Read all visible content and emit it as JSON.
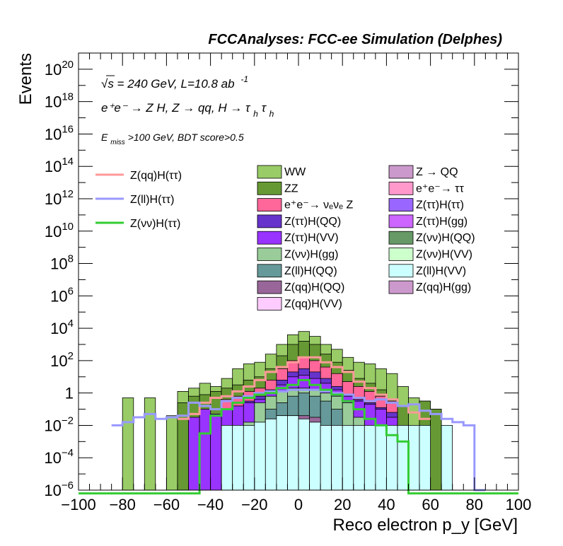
{
  "chart_data": {
    "type": "histogram",
    "title": "FCCAnalyses: FCC-ee Simulation (Delphes)",
    "xlabel": "Reco electron p_y [GeV]",
    "ylabel": "Events",
    "xlim": [
      -100,
      100
    ],
    "ylim_log10": [
      -6,
      21
    ],
    "yscale": "log",
    "x_ticks": [
      -100,
      -80,
      -60,
      -40,
      -20,
      0,
      20,
      40,
      60,
      80,
      100
    ],
    "x_tick_labels": [
      "−100",
      "−80",
      "−60",
      "−40",
      "−20",
      "0",
      "20",
      "40",
      "60",
      "80",
      "100"
    ],
    "y_tick_labels": [
      {
        "exp": -6,
        "text": "10",
        "sup": "−6"
      },
      {
        "exp": -4,
        "text": "10",
        "sup": "−4"
      },
      {
        "exp": -2,
        "text": "10",
        "sup": "−2"
      },
      {
        "exp": 0,
        "text": "1",
        "sup": ""
      },
      {
        "exp": 2,
        "text": "10",
        "sup": "2"
      },
      {
        "exp": 4,
        "text": "10",
        "sup": "4"
      },
      {
        "exp": 6,
        "text": "10",
        "sup": "6"
      },
      {
        "exp": 8,
        "text": "10",
        "sup": "8"
      },
      {
        "exp": 10,
        "text": "10",
        "sup": "10"
      },
      {
        "exp": 12,
        "text": "10",
        "sup": "12"
      },
      {
        "exp": 14,
        "text": "10",
        "sup": "14"
      },
      {
        "exp": 16,
        "text": "10",
        "sup": "16"
      },
      {
        "exp": 18,
        "text": "10",
        "sup": "18"
      },
      {
        "exp": 20,
        "text": "10",
        "sup": "20"
      }
    ],
    "bin_width": 5,
    "bin_centers": [
      -77.5,
      -72.5,
      -67.5,
      -62.5,
      -57.5,
      -52.5,
      -47.5,
      -42.5,
      -37.5,
      -32.5,
      -27.5,
      -22.5,
      -17.5,
      -12.5,
      -7.5,
      -2.5,
      2.5,
      7.5,
      12.5,
      17.5,
      22.5,
      27.5,
      32.5,
      37.5,
      42.5,
      47.5,
      52.5,
      57.5,
      62.5,
      67.5,
      72.5,
      77.5
    ],
    "stack_total_log10": [
      -0.3,
      -6,
      -0.3,
      -6,
      -1.4,
      0.1,
      0.3,
      0.6,
      0.4,
      0.9,
      1.5,
      1.8,
      1.9,
      2.4,
      3.0,
      3.6,
      3.8,
      3.5,
      3.0,
      2.7,
      2.2,
      1.9,
      1.8,
      1.5,
      1.2,
      0.4,
      -0.3,
      -0.5,
      -1.0,
      -6,
      -6,
      -6
    ],
    "layers": [
      {
        "name": "WW",
        "color": "#99cc66",
        "log10": [
          -0.3,
          -6,
          -0.3,
          -6,
          -1.4,
          0.1,
          0.3,
          0.6,
          0.4,
          0.9,
          1.5,
          1.8,
          1.9,
          2.4,
          3.0,
          3.6,
          3.8,
          3.5,
          3.0,
          2.7,
          2.2,
          1.9,
          1.8,
          1.5,
          1.2,
          0.4,
          -0.3,
          -0.5,
          -1.0,
          -6,
          -6,
          -6
        ]
      },
      {
        "name": "ZZ",
        "color": "#669933",
        "log10": [
          -6,
          -6,
          -6,
          -6,
          -6,
          -0.6,
          -0.2,
          -0.1,
          0.1,
          0.3,
          0.5,
          0.8,
          1.0,
          1.5,
          2.3,
          3.0,
          3.2,
          3.0,
          2.4,
          1.9,
          1.4,
          0.9,
          0.6,
          0.2,
          -0.4,
          -0.8,
          -6,
          -0.5,
          -1.0,
          -6,
          -6,
          -6
        ]
      },
      {
        "name": "e⁺e⁻→ νₑνₑ Z",
        "color": "#ff6699",
        "log10": [
          -6,
          -6,
          -6,
          -6,
          -6,
          -6,
          -6,
          -6,
          -6,
          -0.4,
          -0.2,
          0.1,
          0.3,
          0.8,
          1.5,
          2.0,
          2.2,
          2.0,
          1.6,
          1.2,
          0.7,
          0.4,
          0.1,
          -0.2,
          -0.5,
          -6,
          -6,
          -6,
          -6,
          -6,
          -6,
          -6
        ]
      },
      {
        "name": "Z(ττ)H(QQ)",
        "color": "#6633cc",
        "log10": [
          -6,
          -6,
          -6,
          -6,
          -6,
          -6,
          -6,
          -6,
          -6,
          -1.2,
          -0.8,
          -0.5,
          -0.2,
          0.2,
          0.8,
          1.3,
          1.5,
          1.3,
          0.9,
          0.4,
          -0.1,
          -0.4,
          -0.6,
          -0.9,
          -1.2,
          -6,
          -6,
          -6,
          -6,
          -6,
          -6,
          -6
        ]
      },
      {
        "name": "Z(ττ)H(VV)",
        "color": "#9933ff",
        "log10": [
          -6,
          -6,
          -6,
          -6,
          -6,
          -6,
          -1.5,
          -1.0,
          -1.3,
          -1.0,
          -0.8,
          -0.6,
          -0.4,
          0.0,
          0.5,
          1.0,
          1.1,
          0.9,
          0.6,
          0.2,
          -0.2,
          -0.5,
          -0.7,
          -1.0,
          -1.5,
          -6,
          -6,
          -6,
          -6,
          -6,
          -6,
          -6
        ]
      },
      {
        "name": "Z(νν)H(gg)",
        "color": "#99cc99",
        "log10": [
          -6,
          -6,
          -6,
          -6,
          -6,
          -6,
          -6,
          -6,
          -6,
          -6,
          -6,
          -1.8,
          -0.6,
          -0.2,
          0.1,
          0.3,
          0.3,
          0.2,
          0.0,
          -0.2,
          -0.6,
          -1.5,
          -6,
          -6,
          -6,
          -6,
          -6,
          -6,
          -6,
          -6,
          -6,
          -6
        ]
      },
      {
        "name": "Z(ll)H(QQ)",
        "color": "#669999",
        "log10": [
          -6,
          -6,
          -6,
          -6,
          -6,
          -6,
          -6,
          -6,
          -6,
          -6,
          -6,
          -6,
          -6,
          -1.0,
          -0.6,
          -0.2,
          0.0,
          -0.2,
          -0.5,
          -1.0,
          -6,
          -6,
          -6,
          -6,
          -6,
          -6,
          -6,
          -6,
          -6,
          -6,
          -6,
          -6
        ]
      },
      {
        "name": "Z(qq)H(QQ)",
        "color": "#996699",
        "log10": [
          -6,
          -6,
          -6,
          -6,
          -6,
          -6,
          -6,
          -6,
          -6,
          -6,
          -6,
          -6,
          -2.0,
          -1.6,
          -1.4,
          -1.4,
          -1.4,
          -1.5,
          -2.0,
          -6,
          -6,
          -6,
          -6,
          -6,
          -6,
          -6,
          -6,
          -6,
          -6,
          -6,
          -6,
          -6
        ]
      },
      {
        "name": "Z(qq)H(VV)",
        "color": "#ffccff",
        "log10": [
          -6,
          -6,
          -6,
          -6,
          -6,
          -6,
          -6,
          -6,
          -6,
          -6,
          -6,
          -6,
          -6,
          -2.2,
          -2.0,
          -2.0,
          -2.0,
          -2.2,
          -6,
          -6,
          -6,
          -6,
          -6,
          -6,
          -6,
          -6,
          -6,
          -6,
          -6,
          -6,
          -6,
          -6
        ]
      },
      {
        "name": "Z → QQ",
        "color": "#cc99cc",
        "log10": [
          -6,
          -6,
          -6,
          -6,
          -6,
          -6,
          -6,
          -6,
          -6,
          -6,
          -6,
          -6,
          -6,
          -6,
          -6,
          -6,
          -6,
          -6,
          -6,
          -6,
          -6,
          -6,
          -6,
          -6,
          -6,
          -6,
          -6,
          -6,
          -6,
          -6,
          -6,
          -6
        ]
      },
      {
        "name": "e⁺e⁻→ ττ",
        "color": "#ff99cc",
        "log10": [
          -6,
          -6,
          -6,
          -6,
          -6,
          -6,
          -6,
          -6,
          -6,
          -6,
          -6,
          -6,
          -6,
          -6,
          -6,
          -6,
          -6,
          -6,
          -6,
          -6,
          -6,
          -6,
          -6,
          -6,
          -6,
          -6,
          -6,
          -6,
          -6,
          -6,
          -6,
          -6
        ]
      },
      {
        "name": "Z(ττ)H(ττ)",
        "color": "#9966ff",
        "log10": [
          -6,
          -6,
          -6,
          -6,
          -6,
          -6,
          -6,
          -6,
          -6,
          -6,
          -6,
          -6,
          -6,
          -6,
          -6,
          -6,
          -6,
          -6,
          -6,
          -6,
          -6,
          -6,
          -6,
          -6,
          -6,
          -6,
          -6,
          -6,
          -6,
          -6,
          -6,
          -6
        ]
      },
      {
        "name": "Z(ττ)H(gg)",
        "color": "#cc66ff",
        "log10": [
          -6,
          -6,
          -6,
          -6,
          -6,
          -6,
          -6,
          -6,
          -6,
          -6,
          -6,
          -6,
          -6,
          -6,
          -6,
          -6,
          -6,
          -6,
          -6,
          -6,
          -6,
          -6,
          -6,
          -6,
          -6,
          -6,
          -6,
          -6,
          -6,
          -6,
          -6,
          -6
        ]
      },
      {
        "name": "Z(νν)H(QQ)",
        "color": "#669966",
        "log10": [
          -6,
          -6,
          -6,
          -6,
          -6,
          -6,
          -6,
          -6,
          -6,
          -6,
          -6,
          -6,
          -6,
          -6,
          -6,
          -6,
          -6,
          -6,
          -6,
          -6,
          -6,
          -6,
          -6,
          -6,
          -6,
          -6,
          -6,
          -6,
          -6,
          -6,
          -6,
          -6
        ]
      },
      {
        "name": "Z(νν)H(VV)",
        "color": "#ccffcc",
        "log10": [
          -6,
          -6,
          -6,
          -6,
          -6,
          -6,
          -6,
          -6,
          -6,
          -6,
          -6,
          -6,
          -6,
          -6,
          -6,
          -6,
          -6,
          -6,
          -6,
          -6,
          -6,
          -6,
          -6,
          -6,
          -6,
          -6,
          -6,
          -6,
          -6,
          -6,
          -6,
          -6
        ]
      },
      {
        "name": "Z(ll)H(VV)",
        "color": "#ccffff",
        "log10": [
          -6,
          -6,
          -6,
          -6,
          -6,
          -6,
          -6,
          -6,
          -6,
          -2.0,
          -2.0,
          -2.0,
          -1.8,
          -1.6,
          -1.4,
          -1.4,
          -1.6,
          -1.8,
          -2.0,
          -2.0,
          -2.0,
          -2.0,
          -2.0,
          -2.0,
          -2.0,
          -2.0,
          -2.0,
          -2.0,
          -6,
          -2.0,
          -6,
          -6
        ]
      },
      {
        "name": "Z(qq)H(gg)",
        "color": "#cc99cc",
        "log10": [
          -6,
          -6,
          -6,
          -6,
          -6,
          -6,
          -6,
          -6,
          -6,
          -6,
          -6,
          -6,
          -6,
          -6,
          -6,
          -6,
          -6,
          -6,
          -6,
          -6,
          -6,
          -6,
          -6,
          -6,
          -6,
          -6,
          -6,
          -6,
          -6,
          -6,
          -6,
          -6
        ]
      }
    ],
    "signals": [
      {
        "name": "Z(qq)H(ττ)",
        "color": "#ff9999",
        "x_edges": [
          -55,
          -50,
          -45,
          -40,
          -35,
          -30,
          -25,
          -20,
          -15,
          -10,
          -5,
          0,
          5,
          10,
          15,
          20,
          25,
          30,
          35,
          40,
          45,
          50,
          55,
          60
        ],
        "log10": [
          -1.6,
          -1.3,
          -0.6,
          -0.3,
          -0.2,
          0.1,
          0.4,
          0.8,
          1.3,
          1.6,
          1.9,
          2.2,
          2.2,
          1.9,
          1.6,
          1.3,
          0.7,
          0.3,
          -0.1,
          -0.4,
          -0.8,
          -1.2,
          -1.6
        ]
      },
      {
        "name": "Z(ll)H(ττ)",
        "color": "#9999ff",
        "x_edges": [
          -85,
          -80,
          -75,
          -70,
          -65,
          -60,
          -55,
          -50,
          -45,
          -40,
          -35,
          -30,
          -25,
          -20,
          -15,
          -10,
          -5,
          0,
          5,
          10,
          15,
          20,
          25,
          30,
          35,
          40,
          45,
          50,
          55,
          60,
          65,
          70,
          75,
          80,
          85
        ],
        "log10": [
          -2.0,
          -1.8,
          -1.5,
          -1.3,
          -1.6,
          -1.5,
          -1.4,
          -0.6,
          -0.8,
          -1.0,
          -0.5,
          -0.3,
          -0.2,
          0.0,
          0.1,
          0.1,
          0.2,
          0.2,
          0.2,
          0.1,
          0.0,
          -0.1,
          -0.3,
          -0.5,
          -0.4,
          -0.6,
          -0.8,
          -0.7,
          -1.1,
          -1.3,
          -1.6,
          -1.8,
          -2.0,
          -6
        ]
      },
      {
        "name": "Z(νν)H(ττ)",
        "color": "#33cc33",
        "x_edges": [
          -100,
          -45,
          -40,
          -35,
          -30,
          -25,
          -20,
          -15,
          -10,
          -5,
          0,
          5,
          10,
          15,
          20,
          25,
          30,
          35,
          40,
          45,
          50,
          55,
          100
        ],
        "log10": [
          -6.3,
          -2.5,
          -1.4,
          -1.0,
          -0.6,
          -0.3,
          -0.1,
          0.0,
          0.3,
          0.5,
          0.8,
          0.5,
          0.2,
          -0.1,
          -0.5,
          -1.0,
          -1.6,
          -2.0,
          -2.6,
          -3.0,
          -6.3,
          -6.3
        ]
      }
    ]
  },
  "annotations": {
    "energy": "√s = 240 GeV, L=10.8 ab",
    "lumi_exp": "-1",
    "process": "e⁺e⁻ → Z H, Z  → qq, H  → τ",
    "process_sub1": "h",
    "process_tau2": "τ",
    "process_sub2": "h",
    "selection_pre": "E",
    "selection_sub": "miss",
    "selection_post": ">100 GeV, BDT score>0.5"
  },
  "legend_signals": [
    "Z(qq)H(ττ)",
    "Z(ll)H(ττ)",
    "Z(νν)H(ττ)"
  ],
  "legend_backgrounds_col1": [
    {
      "label": "WW",
      "color": "#99cc66"
    },
    {
      "label": "ZZ",
      "color": "#669933"
    },
    {
      "label": "e⁺e⁻→ νₑνₑ Z",
      "color": "#ff6699"
    },
    {
      "label": "Z(ττ)H(QQ)",
      "color": "#6633cc"
    },
    {
      "label": "Z(ττ)H(VV)",
      "color": "#9933ff"
    },
    {
      "label": "Z(νν)H(gg)",
      "color": "#99cc99"
    },
    {
      "label": "Z(ll)H(QQ)",
      "color": "#669999"
    },
    {
      "label": "Z(qq)H(QQ)",
      "color": "#996699"
    },
    {
      "label": "Z(qq)H(VV)",
      "color": "#ffccff"
    }
  ],
  "legend_backgrounds_col2": [
    {
      "label": "Z → QQ",
      "color": "#cc99cc"
    },
    {
      "label": "e⁺e⁻→ ττ",
      "color": "#ff99cc"
    },
    {
      "label": "Z(ττ)H(ττ)",
      "color": "#9966ff"
    },
    {
      "label": "Z(ττ)H(gg)",
      "color": "#cc66ff"
    },
    {
      "label": "Z(νν)H(QQ)",
      "color": "#669966"
    },
    {
      "label": "Z(νν)H(VV)",
      "color": "#ccffcc"
    },
    {
      "label": "Z(ll)H(VV)",
      "color": "#ccffff"
    },
    {
      "label": "Z(qq)H(gg)",
      "color": "#cc99cc"
    }
  ]
}
